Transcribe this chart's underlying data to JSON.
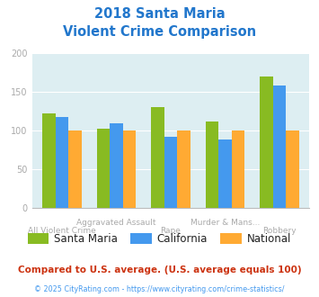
{
  "title_line1": "2018 Santa Maria",
  "title_line2": "Violent Crime Comparison",
  "title_color": "#2277cc",
  "categories": [
    "All Violent Crime",
    "Aggravated Assault",
    "Rape",
    "Murder & Mans...",
    "Robbery"
  ],
  "top_labels": [
    "",
    "Aggravated Assault",
    "",
    "Murder & Mans...",
    ""
  ],
  "bot_labels": [
    "All Violent Crime",
    "",
    "Rape",
    "",
    "Robbery"
  ],
  "santa_maria": [
    122,
    102,
    130,
    112,
    170
  ],
  "california": [
    118,
    109,
    92,
    88,
    158
  ],
  "national": [
    100,
    100,
    100,
    100,
    100
  ],
  "bar_colors": [
    "#88bb22",
    "#4499ee",
    "#ffaa33"
  ],
  "legend_labels": [
    "Santa Maria",
    "California",
    "National"
  ],
  "ylim": [
    0,
    200
  ],
  "yticks": [
    0,
    50,
    100,
    150,
    200
  ],
  "plot_bg": "#ddeef2",
  "footer1": "Compared to U.S. average. (U.S. average equals 100)",
  "footer1_color": "#cc3311",
  "footer2": "© 2025 CityRating.com - https://www.cityrating.com/crime-statistics/",
  "footer2_color": "#4499ee",
  "tick_label_color": "#aaaaaa",
  "grid_color": "#ffffff",
  "legend_text_color": "#222222"
}
